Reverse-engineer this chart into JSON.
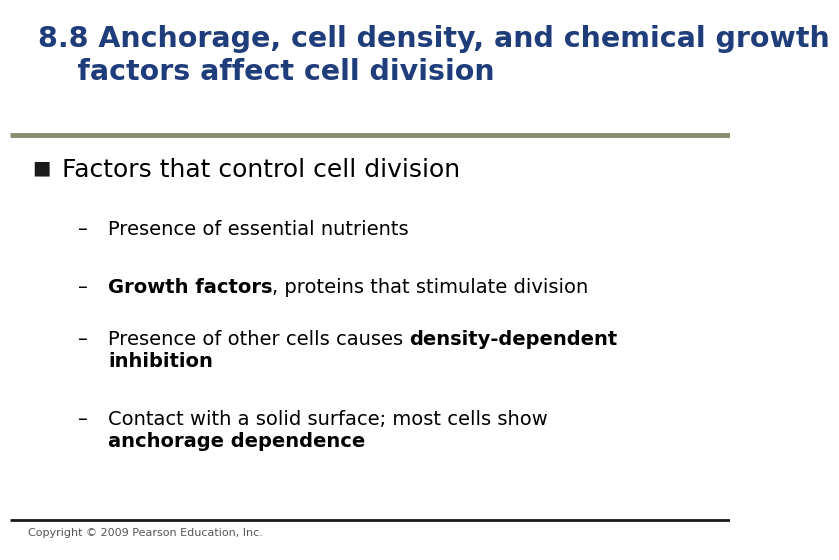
{
  "title_line1": "8.8 Anchorage, cell density, and chemical growth",
  "title_line2": "    factors affect cell division",
  "title_color": "#1F3D7A",
  "title_fontsize": 20.5,
  "separator_color_top": "#8B8B72",
  "separator_color_bottom": "#1a1a1a",
  "background_color": "#FFFFFF",
  "bullet_square_color": "#1a1a1a",
  "level1_text": "Factors that control cell division",
  "level1_fontsize": 18,
  "level2_items": [
    {
      "parts": [
        {
          "text": "Presence of essential nutrients",
          "bold": false
        }
      ]
    },
    {
      "parts": [
        {
          "text": "Growth factors",
          "bold": true
        },
        {
          "text": ", proteins that stimulate division",
          "bold": false
        }
      ]
    },
    {
      "parts": [
        {
          "text": "Presence of other cells causes ",
          "bold": false
        },
        {
          "text": "density-dependent",
          "bold": true
        },
        {
          "text": "\n",
          "bold": false
        },
        {
          "text": "inhibition",
          "bold": true
        }
      ]
    },
    {
      "parts": [
        {
          "text": "Contact with a solid surface; most cells show",
          "bold": false
        },
        {
          "text": "\n",
          "bold": false
        },
        {
          "text": "anchorage dependence",
          "bold": true
        }
      ]
    }
  ],
  "level2_fontsize": 14,
  "copyright_text": "Copyright © 2009 Pearson Education, Inc.",
  "copyright_fontsize": 8,
  "copyright_color": "#555555",
  "dash_char": "–"
}
